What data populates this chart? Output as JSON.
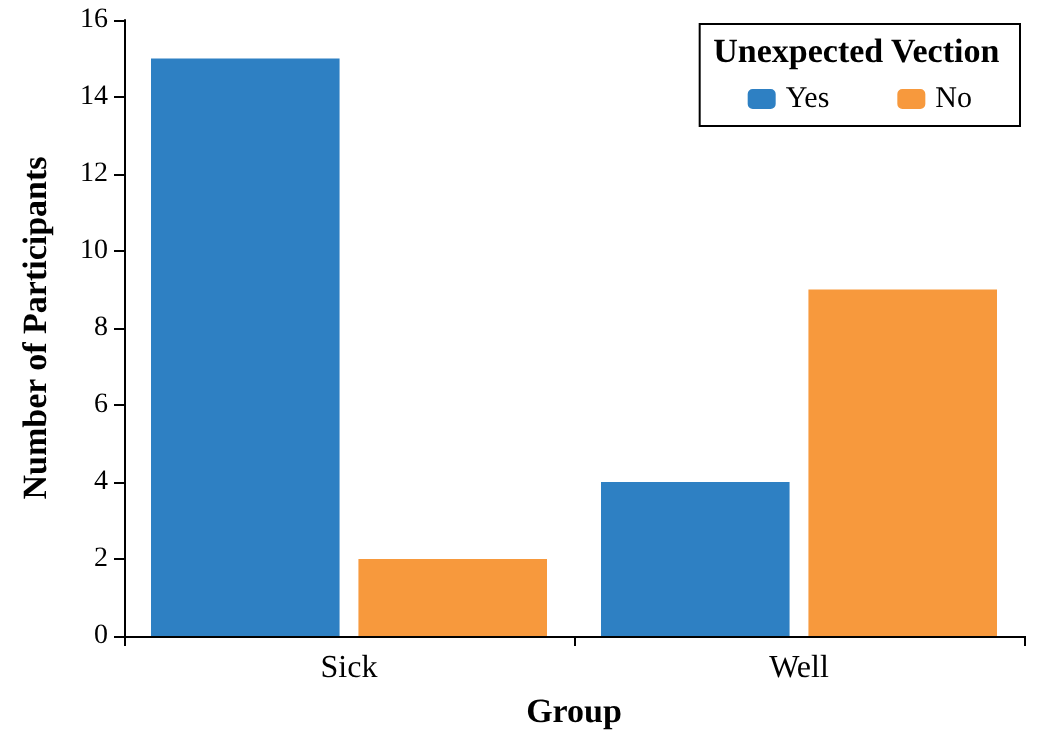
{
  "chart_data": {
    "type": "bar",
    "xlabel": "Group",
    "ylabel": "Number of Participants",
    "legend_title": "Unexpected Vection",
    "categories": [
      "Sick",
      "Well"
    ],
    "series": [
      {
        "name": "Yes",
        "color": "#2e80c3",
        "values": [
          15,
          4
        ]
      },
      {
        "name": "No",
        "color": "#f7993d",
        "values": [
          2,
          9
        ]
      }
    ],
    "ylim": [
      0,
      16
    ],
    "yticks": [
      0,
      2,
      4,
      6,
      8,
      10,
      12,
      14,
      16
    ],
    "grid": false,
    "legend": "top right"
  }
}
